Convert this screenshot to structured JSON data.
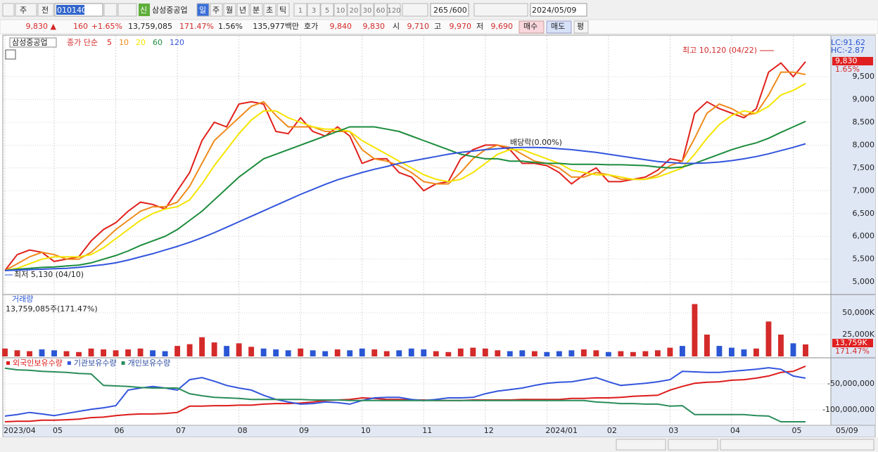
{
  "toolbar": {
    "market": "주",
    "prev": "전",
    "code": "010140",
    "new": "신",
    "name": "삼성중공업",
    "periods": [
      "일",
      "주",
      "월",
      "년",
      "분",
      "초",
      "틱"
    ],
    "intervals": [
      "1",
      "3",
      "5",
      "10",
      "20",
      "30",
      "60",
      "120"
    ],
    "count": "265",
    "max": "/600",
    "date": "2024/05/09"
  },
  "infobar": {
    "price": "9,830 ▲",
    "change": "160",
    "change_pct": "+1.65%",
    "volume": "13,759,085",
    "volume_pct": "171.47%",
    "turnover": "1.56%",
    "amount": "135,977백만",
    "quote_label": "호가",
    "ask": "9,840",
    "bid": "9,830",
    "open_label": "시",
    "open": "9,710",
    "high_label": "고",
    "high": "9,970",
    "low_label": "저",
    "low": "9,690",
    "buy": "매수",
    "sell": "매도",
    "avg": "평"
  },
  "chart_data": [
    {
      "type": "line",
      "title": "삼성중공업",
      "legend_label": "종가 단순",
      "grid": true,
      "categories": [
        "2023/04",
        null,
        null,
        null,
        "05",
        null,
        null,
        null,
        null,
        "06",
        null,
        null,
        null,
        null,
        "07",
        null,
        null,
        null,
        null,
        "08",
        null,
        null,
        null,
        null,
        "09",
        null,
        null,
        null,
        null,
        "10",
        null,
        null,
        null,
        null,
        "11",
        null,
        null,
        null,
        null,
        "12",
        null,
        null,
        null,
        null,
        "2024/01",
        null,
        null,
        null,
        null,
        "02",
        null,
        null,
        null,
        null,
        "03",
        null,
        null,
        null,
        null,
        "04",
        null,
        null,
        null,
        null,
        "05",
        null
      ],
      "last_date": "05/09",
      "ylim": [
        4740,
        10380
      ],
      "yticks": [
        {
          "value": 5000,
          "label": "5,000"
        },
        {
          "value": 5500,
          "label": "5,500"
        },
        {
          "value": 6000,
          "label": "6,000"
        },
        {
          "value": 6500,
          "label": "6,500"
        },
        {
          "value": 7000,
          "label": "7,000"
        },
        {
          "value": 7500,
          "label": "7,500"
        },
        {
          "value": 8000,
          "label": "8,000"
        },
        {
          "value": 8500,
          "label": "8,500"
        },
        {
          "value": 9000,
          "label": "9,000"
        },
        {
          "value": 9500,
          "label": "9,500"
        }
      ],
      "annotations": {
        "high": "최고 10,120 (04/22)",
        "low": "최저 5,130 (04/10)",
        "ex_dividend": "배당락(0.00%)"
      },
      "right_labels": {
        "lc": "LC:91.62",
        "hc": "HC:-2.87",
        "price": "9,830",
        "pct": "1.65%"
      },
      "series": [
        {
          "name": "5",
          "color": "#e0201b",
          "values": [
            5250,
            5600,
            5700,
            5650,
            5450,
            5500,
            5550,
            5900,
            6150,
            6300,
            6550,
            6750,
            6700,
            6600,
            7000,
            7400,
            8100,
            8500,
            8400,
            8900,
            8950,
            8900,
            8300,
            8250,
            8600,
            8300,
            8200,
            8400,
            8200,
            7600,
            7700,
            7700,
            7400,
            7300,
            7000,
            7150,
            7200,
            7700,
            7900,
            8000,
            8000,
            7900,
            7600,
            7600,
            7550,
            7400,
            7150,
            7350,
            7500,
            7200,
            7200,
            7250,
            7300,
            7450,
            7700,
            7650,
            8700,
            8950,
            8800,
            8700,
            8600,
            8800,
            9600,
            9800,
            9500,
            9830
          ]
        },
        {
          "name": "10",
          "color": "#f08a1c",
          "values": [
            5250,
            5400,
            5550,
            5650,
            5600,
            5500,
            5500,
            5650,
            5900,
            6150,
            6350,
            6550,
            6650,
            6650,
            6750,
            7100,
            7600,
            8100,
            8350,
            8600,
            8850,
            8950,
            8650,
            8400,
            8400,
            8400,
            8300,
            8300,
            8300,
            7900,
            7700,
            7650,
            7550,
            7400,
            7200,
            7150,
            7150,
            7400,
            7700,
            7900,
            8000,
            7950,
            7800,
            7650,
            7600,
            7500,
            7300,
            7300,
            7400,
            7350,
            7250,
            7250,
            7250,
            7350,
            7550,
            7650,
            8150,
            8700,
            8900,
            8800,
            8650,
            8700,
            9100,
            9600,
            9600,
            9550
          ]
        },
        {
          "name": "20",
          "color": "#f5e400",
          "values": [
            5250,
            5300,
            5400,
            5500,
            5550,
            5550,
            5550,
            5600,
            5750,
            5950,
            6150,
            6350,
            6500,
            6600,
            6650,
            6800,
            7150,
            7550,
            7900,
            8250,
            8550,
            8750,
            8750,
            8600,
            8500,
            8400,
            8350,
            8350,
            8300,
            8100,
            7950,
            7800,
            7650,
            7500,
            7350,
            7250,
            7200,
            7250,
            7400,
            7600,
            7800,
            7900,
            7900,
            7800,
            7700,
            7600,
            7450,
            7400,
            7350,
            7350,
            7300,
            7250,
            7250,
            7300,
            7400,
            7500,
            7800,
            8150,
            8450,
            8650,
            8750,
            8700,
            8850,
            9100,
            9200,
            9350
          ]
        },
        {
          "name": "60",
          "color": "#1c8c3c",
          "values": [
            5250,
            5280,
            5300,
            5320,
            5330,
            5350,
            5370,
            5420,
            5500,
            5580,
            5680,
            5800,
            5900,
            6000,
            6150,
            6350,
            6550,
            6800,
            7050,
            7300,
            7500,
            7700,
            7800,
            7900,
            8000,
            8100,
            8200,
            8300,
            8400,
            8400,
            8400,
            8350,
            8300,
            8200,
            8100,
            8000,
            7900,
            7800,
            7750,
            7700,
            7700,
            7650,
            7650,
            7620,
            7600,
            7600,
            7580,
            7580,
            7580,
            7570,
            7570,
            7560,
            7550,
            7520,
            7500,
            7520,
            7600,
            7700,
            7800,
            7900,
            7980,
            8050,
            8150,
            8280,
            8400,
            8520
          ]
        },
        {
          "name": "120",
          "color": "#3355dd",
          "values": [
            5250,
            5260,
            5270,
            5280,
            5290,
            5300,
            5320,
            5350,
            5380,
            5420,
            5480,
            5550,
            5620,
            5700,
            5780,
            5870,
            5970,
            6080,
            6200,
            6320,
            6440,
            6560,
            6680,
            6800,
            6920,
            7030,
            7140,
            7240,
            7320,
            7400,
            7470,
            7530,
            7600,
            7650,
            7700,
            7750,
            7800,
            7840,
            7870,
            7900,
            7920,
            7940,
            7950,
            7950,
            7940,
            7920,
            7900,
            7870,
            7840,
            7800,
            7760,
            7720,
            7680,
            7640,
            7620,
            7600,
            7600,
            7610,
            7630,
            7660,
            7700,
            7750,
            7810,
            7880,
            7950,
            8030
          ]
        }
      ]
    },
    {
      "type": "bar",
      "title": "거래량",
      "subtitle": "13,759,085주(171.47%)",
      "up_color": "#d42a2a",
      "down_color": "#2a56d4",
      "ylim": [
        0,
        68500
      ],
      "yticks": [
        {
          "value": 25000,
          "label": "25,000K"
        },
        {
          "value": 50000,
          "label": "50,000K"
        }
      ],
      "right_labels": {
        "volume": "13,759K",
        "pct": "171.47%"
      },
      "values": [
        9000,
        7000,
        6000,
        8000,
        7000,
        6000,
        5000,
        9000,
        8000,
        7000,
        8000,
        9000,
        7000,
        6000,
        12000,
        14000,
        22000,
        16000,
        12000,
        15000,
        11000,
        9000,
        8000,
        7000,
        9000,
        7000,
        6000,
        8000,
        7000,
        9000,
        8000,
        6000,
        7000,
        9000,
        8000,
        6000,
        5000,
        9000,
        10000,
        9000,
        7000,
        6000,
        7000,
        6000,
        5000,
        6000,
        7000,
        8000,
        7000,
        5000,
        6000,
        5000,
        6000,
        7000,
        10000,
        12000,
        60000,
        25000,
        12000,
        10000,
        8000,
        9000,
        40000,
        25000,
        15000,
        13759
      ]
    },
    {
      "type": "line",
      "ylim": [
        -127000000,
        -4000000
      ],
      "yticks": [
        {
          "value": -50000000,
          "label": "-50,000,000"
        },
        {
          "value": -100000000,
          "label": "-100,000,000"
        }
      ],
      "series": [
        {
          "name": "외국인보유수량",
          "color": "#dd1b1b",
          "values": [
            -123000000,
            -122000000,
            -122000000,
            -120000000,
            -120000000,
            -119000000,
            -118000000,
            -115000000,
            -114000000,
            -111000000,
            -109000000,
            -108000000,
            -108000000,
            -107000000,
            -105000000,
            -93000000,
            -93000000,
            -92000000,
            -92000000,
            -91000000,
            -91000000,
            -89000000,
            -88000000,
            -88000000,
            -87000000,
            -85000000,
            -82000000,
            -81000000,
            -80000000,
            -77000000,
            -78000000,
            -80000000,
            -80000000,
            -81000000,
            -81000000,
            -82000000,
            -82000000,
            -82000000,
            -81000000,
            -81000000,
            -81000000,
            -81000000,
            -80000000,
            -80000000,
            -80000000,
            -80000000,
            -78000000,
            -78000000,
            -77000000,
            -77000000,
            -76000000,
            -74000000,
            -73000000,
            -72000000,
            -62000000,
            -55000000,
            -49000000,
            -47000000,
            -46000000,
            -43000000,
            -42000000,
            -39000000,
            -35000000,
            -28000000,
            -26000000,
            -16000000
          ]
        },
        {
          "name": "기관보유수량",
          "color": "#3355dd",
          "values": [
            -112000000,
            -109000000,
            -105000000,
            -108000000,
            -111000000,
            -107000000,
            -103000000,
            -99000000,
            -96000000,
            -92000000,
            -62000000,
            -58000000,
            -55000000,
            -58000000,
            -62000000,
            -42000000,
            -38000000,
            -45000000,
            -53000000,
            -58000000,
            -62000000,
            -72000000,
            -80000000,
            -85000000,
            -89000000,
            -88000000,
            -85000000,
            -86000000,
            -89000000,
            -82000000,
            -77000000,
            -76000000,
            -76000000,
            -80000000,
            -82000000,
            -80000000,
            -77000000,
            -77000000,
            -76000000,
            -69000000,
            -64000000,
            -61000000,
            -58000000,
            -53000000,
            -49000000,
            -47000000,
            -46000000,
            -42000000,
            -38000000,
            -46000000,
            -53000000,
            -51000000,
            -49000000,
            -46000000,
            -42000000,
            -26000000,
            -27000000,
            -28000000,
            -28000000,
            -26000000,
            -24000000,
            -22000000,
            -19000000,
            -22000000,
            -35000000,
            -39000000
          ]
        },
        {
          "name": "개인보유수량",
          "color": "#2a8c5a",
          "values": [
            -20000000,
            -23000000,
            -24000000,
            -26000000,
            -27000000,
            -28000000,
            -30000000,
            -31000000,
            -53000000,
            -54000000,
            -55000000,
            -57000000,
            -58000000,
            -58000000,
            -58000000,
            -69000000,
            -73000000,
            -76000000,
            -77000000,
            -78000000,
            -80000000,
            -80000000,
            -80000000,
            -80000000,
            -80000000,
            -81000000,
            -81000000,
            -81000000,
            -82000000,
            -82000000,
            -82000000,
            -82000000,
            -82000000,
            -82000000,
            -82000000,
            -82000000,
            -82000000,
            -82000000,
            -82000000,
            -82000000,
            -82000000,
            -82000000,
            -82000000,
            -82000000,
            -82000000,
            -82000000,
            -82000000,
            -82000000,
            -85000000,
            -86000000,
            -88000000,
            -88000000,
            -89000000,
            -89000000,
            -93000000,
            -92000000,
            -109000000,
            -109000000,
            -109000000,
            -109000000,
            -109000000,
            -111000000,
            -112000000,
            -123000000,
            -123000000,
            -123000000
          ]
        }
      ]
    }
  ]
}
